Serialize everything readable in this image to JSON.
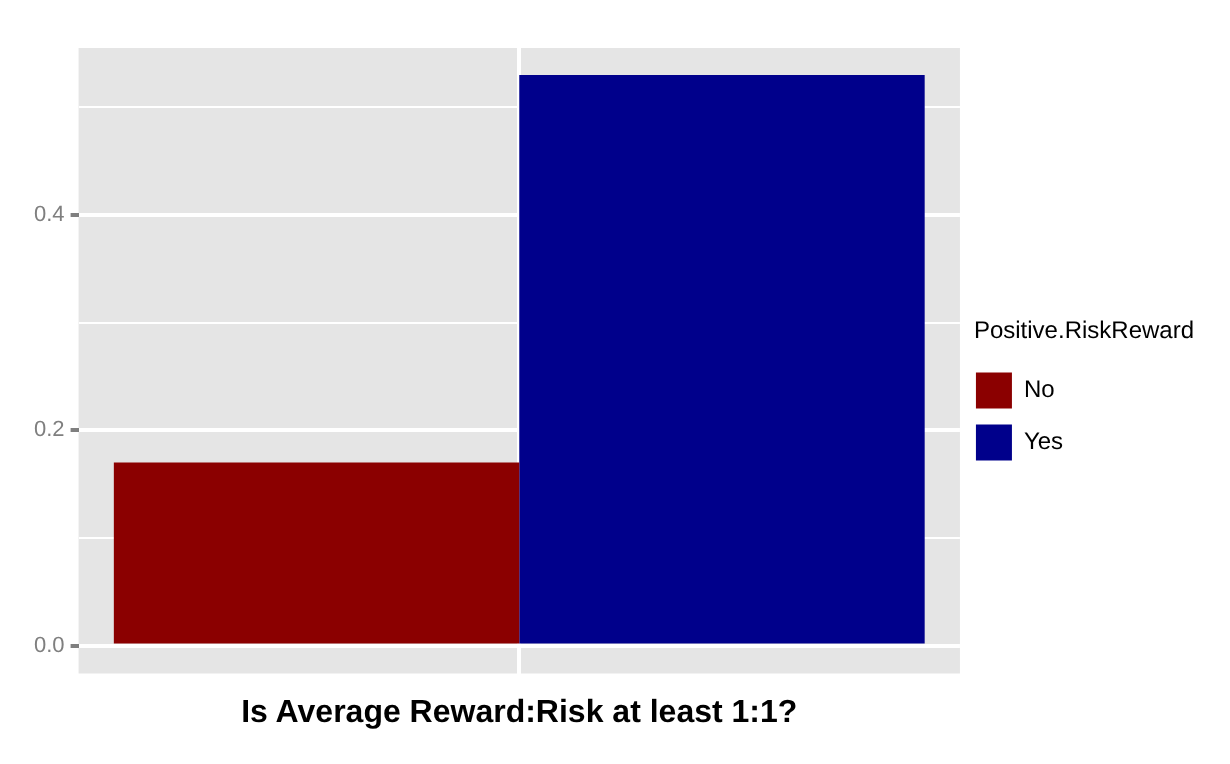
{
  "chart_data": {
    "type": "bar",
    "xlabel": "Is Average Reward:Risk at least 1:1?",
    "legend_title": "Positive.RiskReward",
    "categories": [
      null
    ],
    "series": [
      {
        "name": "No",
        "color": "#8b0000",
        "values": [
          0.17
        ]
      },
      {
        "name": "Yes",
        "color": "#00008b",
        "values": [
          0.53
        ]
      }
    ],
    "ylim": [
      -0.026,
      0.555
    ],
    "yticks": [
      {
        "value": 0,
        "label": "0.0"
      },
      {
        "value": 0.1,
        "label": null
      },
      {
        "value": 0.2,
        "label": "0.2"
      },
      {
        "value": 0.3,
        "label": null
      },
      {
        "value": 0.4,
        "label": "0.4"
      },
      {
        "value": 0.5,
        "label": null
      }
    ],
    "grid": true,
    "legend": "right",
    "tick_labels": "y"
  }
}
